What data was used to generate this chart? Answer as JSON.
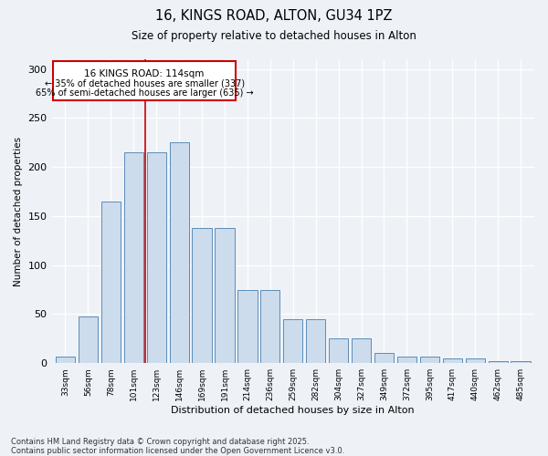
{
  "title1": "16, KINGS ROAD, ALTON, GU34 1PZ",
  "title2": "Size of property relative to detached houses in Alton",
  "xlabel": "Distribution of detached houses by size in Alton",
  "ylabel": "Number of detached properties",
  "categories": [
    "33sqm",
    "56sqm",
    "78sqm",
    "101sqm",
    "123sqm",
    "146sqm",
    "169sqm",
    "191sqm",
    "214sqm",
    "236sqm",
    "259sqm",
    "282sqm",
    "304sqm",
    "327sqm",
    "349sqm",
    "372sqm",
    "395sqm",
    "417sqm",
    "440sqm",
    "462sqm",
    "485sqm"
  ],
  "values": [
    7,
    48,
    165,
    215,
    215,
    225,
    138,
    138,
    75,
    75,
    45,
    45,
    25,
    25,
    10,
    7,
    7,
    5,
    5,
    2,
    2
  ],
  "bar_color": "#ccdcec",
  "bar_edge_color": "#5b8db8",
  "bg_color": "#eef2f7",
  "grid_color": "#d8dfe8",
  "annotation_box_color": "#ffffff",
  "annotation_box_edge": "#cc0000",
  "annotation_line_color": "#cc0000",
  "annotation_text": "16 KINGS ROAD: 114sqm",
  "annotation_line1": "← 35% of detached houses are smaller (337)",
  "annotation_line2": "65% of semi-detached houses are larger (635) →",
  "ylim": [
    0,
    310
  ],
  "yticks": [
    0,
    50,
    100,
    150,
    200,
    250,
    300
  ],
  "footer1": "Contains HM Land Registry data © Crown copyright and database right 2025.",
  "footer2": "Contains public sector information licensed under the Open Government Licence v3.0.",
  "vline_x_index": 3.5
}
